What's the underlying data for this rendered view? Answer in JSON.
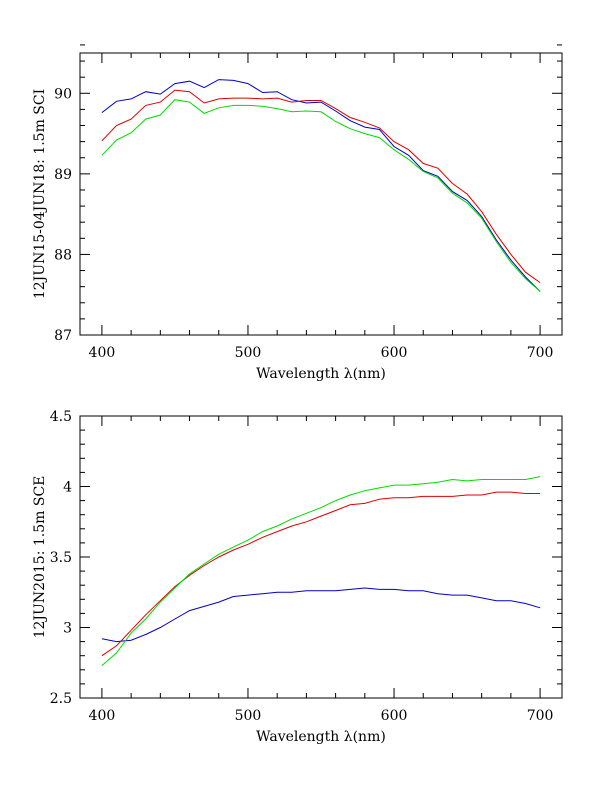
{
  "chart_data": [
    {
      "type": "line",
      "title": "",
      "xlabel": "Wavelength λ(nm)",
      "ylabel": "12JUN15-04JUN18: 1.5m SCI",
      "xlim": [
        385,
        715
      ],
      "ylim": [
        87,
        90.5
      ],
      "xticks": [
        400,
        500,
        600,
        700
      ],
      "xtick_labels": [
        "400",
        "500",
        "600",
        "700"
      ],
      "x_minor_step": 20,
      "yticks": [
        87,
        88,
        89,
        90
      ],
      "ytick_labels": [
        "87",
        "88",
        "89",
        "90"
      ],
      "y_minor_step": 0.2,
      "grid": false,
      "x": [
        400,
        410,
        420,
        430,
        440,
        450,
        460,
        470,
        480,
        490,
        500,
        510,
        520,
        530,
        540,
        550,
        560,
        570,
        580,
        590,
        600,
        610,
        620,
        630,
        640,
        650,
        660,
        670,
        680,
        690,
        700
      ],
      "series": [
        {
          "name": "blue",
          "color": "#0000cc",
          "values": [
            89.76,
            89.9,
            89.93,
            90.02,
            89.99,
            90.12,
            90.15,
            90.07,
            90.17,
            90.16,
            90.12,
            90.01,
            90.02,
            89.92,
            89.88,
            89.89,
            89.78,
            89.66,
            89.58,
            89.55,
            89.34,
            89.23,
            89.04,
            88.97,
            88.78,
            88.67,
            88.47,
            88.18,
            87.93,
            87.72,
            87.54
          ]
        },
        {
          "name": "red",
          "color": "#dd0000",
          "values": [
            89.41,
            89.6,
            89.68,
            89.85,
            89.89,
            90.04,
            90.02,
            89.88,
            89.93,
            89.94,
            89.94,
            89.93,
            89.94,
            89.89,
            89.91,
            89.91,
            89.81,
            89.7,
            89.64,
            89.57,
            89.4,
            89.3,
            89.13,
            89.07,
            88.88,
            88.75,
            88.53,
            88.25,
            88.0,
            87.78,
            87.65
          ]
        },
        {
          "name": "green",
          "color": "#00dd00",
          "values": [
            89.23,
            89.42,
            89.51,
            89.68,
            89.73,
            89.92,
            89.89,
            89.75,
            89.82,
            89.85,
            89.85,
            89.84,
            89.81,
            89.77,
            89.78,
            89.77,
            89.65,
            89.56,
            89.5,
            89.45,
            89.3,
            89.18,
            89.03,
            88.95,
            88.76,
            88.64,
            88.45,
            88.16,
            87.9,
            87.7,
            87.54
          ]
        }
      ]
    },
    {
      "type": "line",
      "title": "",
      "xlabel": "Wavelength λ(nm)",
      "ylabel": "12JUN2015: 1.5m SCE",
      "xlim": [
        385,
        715
      ],
      "ylim": [
        2.5,
        4.5
      ],
      "xticks": [
        400,
        500,
        600,
        700
      ],
      "xtick_labels": [
        "400",
        "500",
        "600",
        "700"
      ],
      "x_minor_step": 20,
      "yticks": [
        2.5,
        3,
        3.5,
        4,
        4.5
      ],
      "ytick_labels": [
        "2.5",
        "3",
        "3.5",
        "4",
        "4.5"
      ],
      "y_minor_step": 0.1,
      "grid": false,
      "x": [
        400,
        410,
        420,
        430,
        440,
        450,
        460,
        470,
        480,
        490,
        500,
        510,
        520,
        530,
        540,
        550,
        560,
        570,
        580,
        590,
        600,
        610,
        620,
        630,
        640,
        650,
        660,
        670,
        680,
        690,
        700
      ],
      "series": [
        {
          "name": "blue",
          "color": "#0000cc",
          "values": [
            2.92,
            2.9,
            2.91,
            2.95,
            3.0,
            3.06,
            3.12,
            3.15,
            3.18,
            3.22,
            3.23,
            3.24,
            3.25,
            3.25,
            3.26,
            3.26,
            3.26,
            3.27,
            3.28,
            3.27,
            3.27,
            3.26,
            3.26,
            3.24,
            3.23,
            3.23,
            3.21,
            3.19,
            3.19,
            3.17,
            3.14
          ]
        },
        {
          "name": "red",
          "color": "#dd0000",
          "values": [
            2.8,
            2.87,
            2.98,
            3.09,
            3.19,
            3.29,
            3.37,
            3.44,
            3.5,
            3.55,
            3.59,
            3.64,
            3.68,
            3.72,
            3.75,
            3.79,
            3.83,
            3.87,
            3.88,
            3.91,
            3.92,
            3.92,
            3.93,
            3.93,
            3.93,
            3.94,
            3.94,
            3.96,
            3.96,
            3.95,
            3.95
          ]
        },
        {
          "name": "green",
          "color": "#00dd00",
          "values": [
            2.73,
            2.82,
            2.96,
            3.06,
            3.18,
            3.28,
            3.38,
            3.45,
            3.52,
            3.57,
            3.62,
            3.68,
            3.72,
            3.77,
            3.81,
            3.85,
            3.9,
            3.94,
            3.97,
            3.99,
            4.01,
            4.01,
            4.02,
            4.03,
            4.05,
            4.04,
            4.05,
            4.05,
            4.05,
            4.05,
            4.07
          ]
        }
      ]
    }
  ]
}
